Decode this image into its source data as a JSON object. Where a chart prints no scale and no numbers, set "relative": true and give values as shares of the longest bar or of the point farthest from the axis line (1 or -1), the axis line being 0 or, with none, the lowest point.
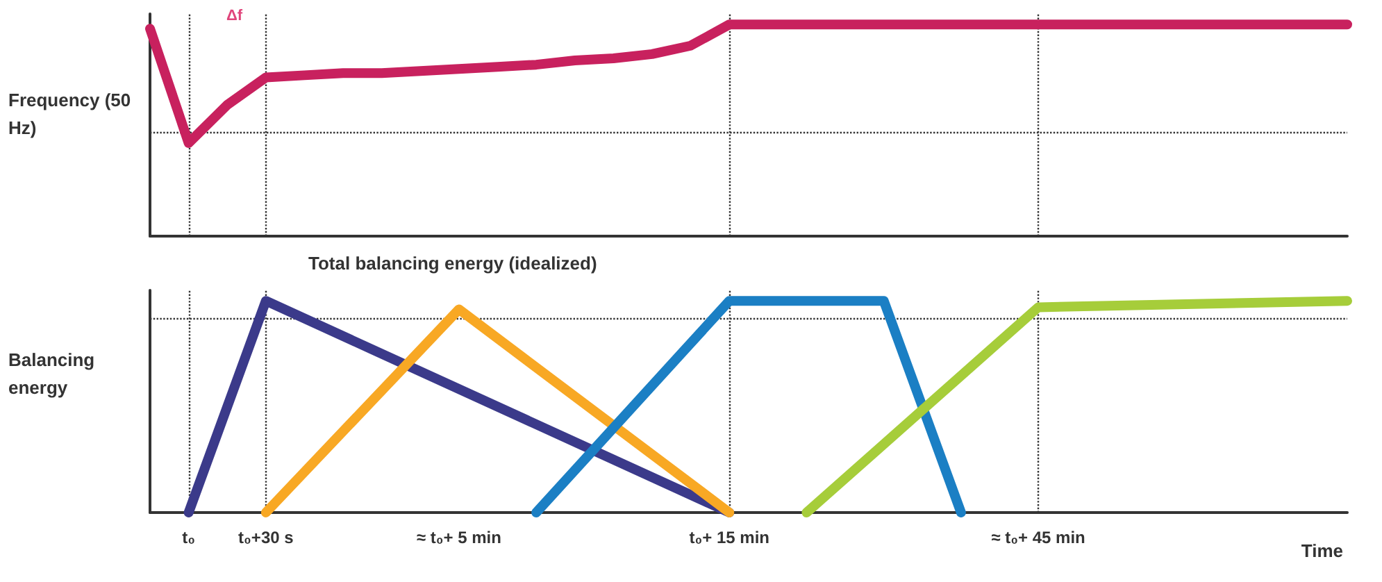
{
  "chart_data": [
    {
      "type": "line",
      "relative": true,
      "ylabel": "Frequency (50 Hz)",
      "tick_labels": false,
      "grid": false,
      "marker": "none",
      "annotations": [
        "Δf"
      ],
      "categories": [
        null,
        "t₀",
        null,
        "t₀+30 s",
        null,
        null,
        null,
        null,
        "≈ t₀+ 5 min",
        null,
        null,
        null,
        null,
        null,
        null,
        "t₀+ 15 min",
        null,
        null,
        null,
        null,
        null,
        null,
        null,
        "≈ t₀+ 45 min",
        null,
        null,
        null,
        null,
        null,
        null,
        null,
        null
      ],
      "series": [
        {
          "color": "#c8215e",
          "values": [
            0.98,
            0.44,
            0.62,
            0.75,
            0.76,
            0.77,
            0.77,
            0.78,
            0.79,
            0.8,
            0.81,
            0.83,
            0.84,
            0.86,
            0.9,
            1,
            1,
            1,
            1,
            1,
            1,
            1,
            1,
            1,
            1,
            1,
            1,
            1,
            1,
            1,
            1,
            1
          ]
        }
      ],
      "ref_lines": [
        {
          "axis": "x",
          "value": "t₀"
        },
        {
          "axis": "x",
          "value": "t₀+30 s"
        },
        {
          "axis": "x",
          "value": "t₀+ 15 min"
        },
        {
          "axis": "x",
          "value": "≈ t₀+ 45 min"
        },
        {
          "axis": "y",
          "value": 0.49
        }
      ]
    },
    {
      "type": "line",
      "relative": true,
      "ylabel": "Balancing energy",
      "xlabel": "Time",
      "grid": false,
      "marker": "none",
      "annotations": [
        "Total balancing energy (idealized)"
      ],
      "categories": [
        null,
        "t₀",
        null,
        "t₀+30 s",
        null,
        null,
        null,
        null,
        "≈ t₀+ 5 min",
        null,
        null,
        null,
        null,
        null,
        null,
        "t₀+ 15 min",
        null,
        null,
        null,
        null,
        null,
        null,
        null,
        "≈ t₀+ 45 min",
        null,
        null,
        null,
        null,
        null,
        null,
        null,
        null
      ],
      "series": [
        {
          "color": "#3b3a8a",
          "values": [
            null,
            0,
            null,
            1,
            null,
            null,
            null,
            null,
            null,
            null,
            null,
            null,
            null,
            null,
            null,
            0,
            null,
            null,
            null,
            null,
            null,
            null,
            null,
            null,
            null,
            null,
            null,
            null,
            null,
            null,
            null,
            null
          ]
        },
        {
          "color": "#f8a824",
          "values": [
            null,
            null,
            null,
            0,
            null,
            null,
            null,
            null,
            0.96,
            null,
            null,
            null,
            null,
            null,
            null,
            0,
            null,
            null,
            null,
            null,
            null,
            null,
            null,
            null,
            null,
            null,
            null,
            null,
            null,
            null,
            null,
            null
          ]
        },
        {
          "color": "#1b7fc4",
          "values": [
            null,
            null,
            null,
            null,
            null,
            null,
            null,
            null,
            null,
            null,
            0,
            null,
            null,
            null,
            null,
            1,
            null,
            null,
            null,
            1,
            null,
            0,
            null,
            null,
            null,
            null,
            null,
            null,
            null,
            null,
            null,
            null
          ]
        },
        {
          "color": "#a6cd3a",
          "values": [
            null,
            null,
            null,
            null,
            null,
            null,
            null,
            null,
            null,
            null,
            null,
            null,
            null,
            null,
            null,
            null,
            null,
            0,
            null,
            null,
            null,
            null,
            null,
            0.97,
            null,
            null,
            null,
            null,
            null,
            null,
            null,
            1
          ]
        }
      ],
      "ref_lines": [
        {
          "axis": "x",
          "value": "t₀"
        },
        {
          "axis": "x",
          "value": "t₀+30 s"
        },
        {
          "axis": "x",
          "value": "t₀+ 15 min"
        },
        {
          "axis": "x",
          "value": "≈ t₀+ 45 min"
        },
        {
          "axis": "y",
          "value": 0.92
        }
      ]
    }
  ]
}
